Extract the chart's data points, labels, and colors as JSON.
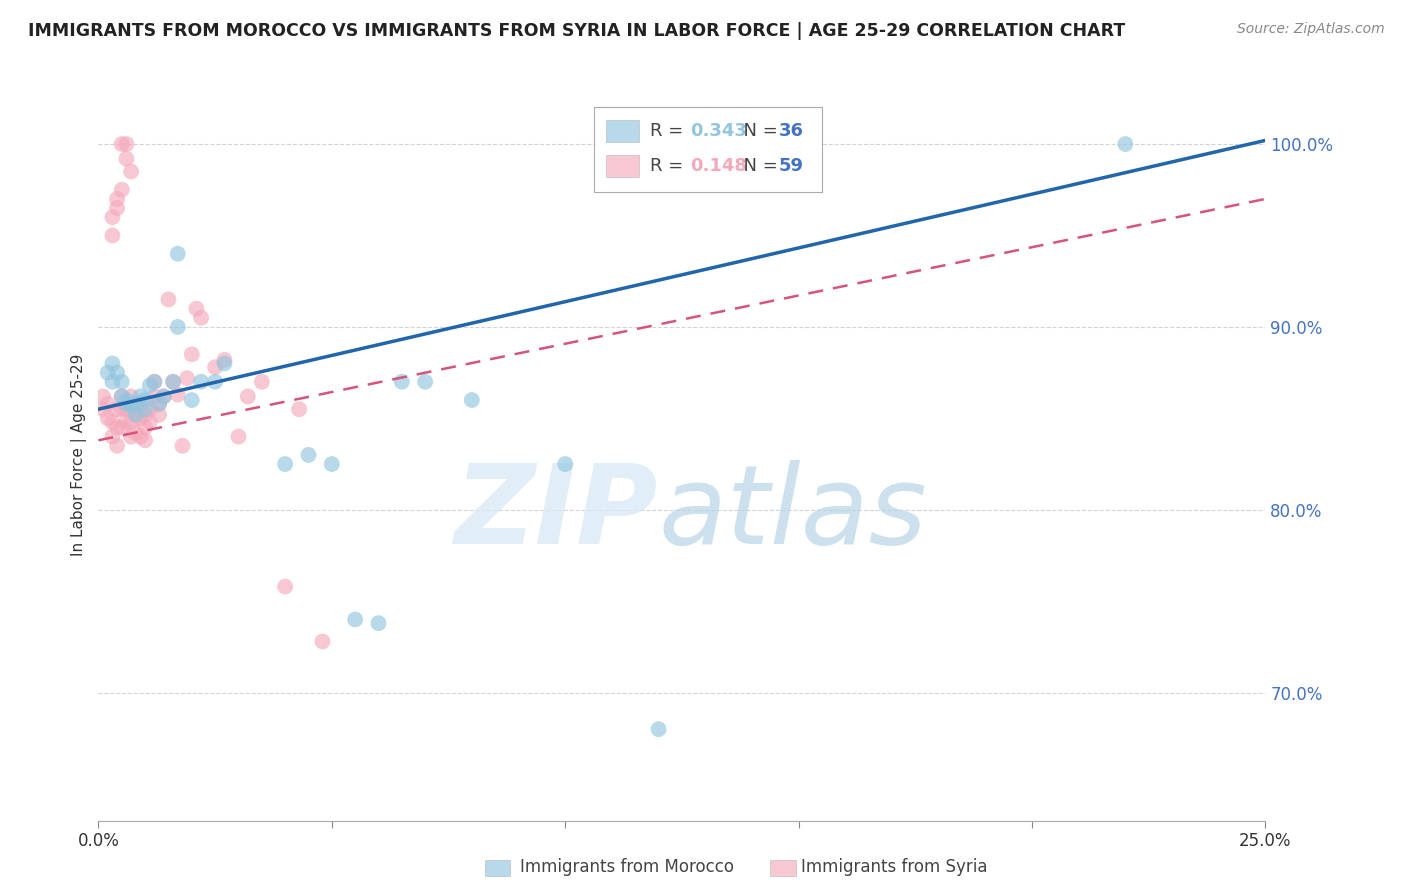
{
  "title": "IMMIGRANTS FROM MOROCCO VS IMMIGRANTS FROM SYRIA IN LABOR FORCE | AGE 25-29 CORRELATION CHART",
  "source": "Source: ZipAtlas.com",
  "ylabel": "In Labor Force | Age 25-29",
  "xlim": [
    0.0,
    0.25
  ],
  "ylim": [
    0.63,
    1.03
  ],
  "yticks_right": [
    0.7,
    0.8,
    0.9,
    1.0
  ],
  "ytick_labels_right": [
    "70.0%",
    "80.0%",
    "90.0%",
    "100.0%"
  ],
  "xticks": [
    0.0,
    0.05,
    0.1,
    0.15,
    0.2,
    0.25
  ],
  "xtick_labels": [
    "0.0%",
    "",
    "",
    "",
    "",
    "25.0%"
  ],
  "morocco_color": "#92c5de",
  "syria_color": "#f4a9bb",
  "morocco_line_color": "#2166ac",
  "syria_line_color": "#d6537a",
  "morocco_R": 0.343,
  "morocco_N": 36,
  "syria_R": 0.148,
  "syria_N": 59,
  "watermark_zip": "ZIP",
  "watermark_atlas": "atlas",
  "background_color": "#ffffff",
  "grid_color": "#c8c8c8",
  "morocco_x": [
    0.002,
    0.003,
    0.003,
    0.004,
    0.005,
    0.005,
    0.006,
    0.006,
    0.007,
    0.008,
    0.008,
    0.009,
    0.01,
    0.01,
    0.011,
    0.012,
    0.013,
    0.014,
    0.016,
    0.017,
    0.017,
    0.02,
    0.022,
    0.025,
    0.027,
    0.04,
    0.045,
    0.05,
    0.055,
    0.06,
    0.065,
    0.07,
    0.08,
    0.1,
    0.12,
    0.22
  ],
  "morocco_y": [
    0.875,
    0.87,
    0.88,
    0.875,
    0.87,
    0.862,
    0.86,
    0.858,
    0.857,
    0.858,
    0.852,
    0.862,
    0.86,
    0.855,
    0.868,
    0.87,
    0.858,
    0.862,
    0.87,
    0.9,
    0.94,
    0.86,
    0.87,
    0.87,
    0.88,
    0.825,
    0.83,
    0.825,
    0.74,
    0.738,
    0.87,
    0.87,
    0.86,
    0.825,
    0.68,
    1.0
  ],
  "syria_x": [
    0.001,
    0.001,
    0.002,
    0.002,
    0.003,
    0.003,
    0.004,
    0.004,
    0.004,
    0.005,
    0.005,
    0.005,
    0.006,
    0.006,
    0.007,
    0.007,
    0.007,
    0.007,
    0.008,
    0.008,
    0.008,
    0.009,
    0.009,
    0.009,
    0.01,
    0.01,
    0.01,
    0.011,
    0.011,
    0.012,
    0.012,
    0.013,
    0.013,
    0.014,
    0.015,
    0.016,
    0.017,
    0.018,
    0.019,
    0.02,
    0.021,
    0.022,
    0.025,
    0.027,
    0.03,
    0.032,
    0.035,
    0.04,
    0.043,
    0.048,
    0.003,
    0.003,
    0.004,
    0.004,
    0.005,
    0.005,
    0.006,
    0.006,
    0.007
  ],
  "syria_y": [
    0.862,
    0.855,
    0.858,
    0.85,
    0.848,
    0.84,
    0.855,
    0.845,
    0.835,
    0.862,
    0.855,
    0.845,
    0.855,
    0.848,
    0.862,
    0.855,
    0.848,
    0.84,
    0.858,
    0.852,
    0.842,
    0.858,
    0.85,
    0.84,
    0.852,
    0.845,
    0.838,
    0.855,
    0.848,
    0.862,
    0.87,
    0.858,
    0.852,
    0.862,
    0.915,
    0.87,
    0.863,
    0.835,
    0.872,
    0.885,
    0.91,
    0.905,
    0.878,
    0.882,
    0.84,
    0.862,
    0.87,
    0.758,
    0.855,
    0.728,
    0.95,
    0.96,
    0.965,
    0.97,
    0.975,
    1.0,
    1.0,
    0.992,
    0.985
  ]
}
